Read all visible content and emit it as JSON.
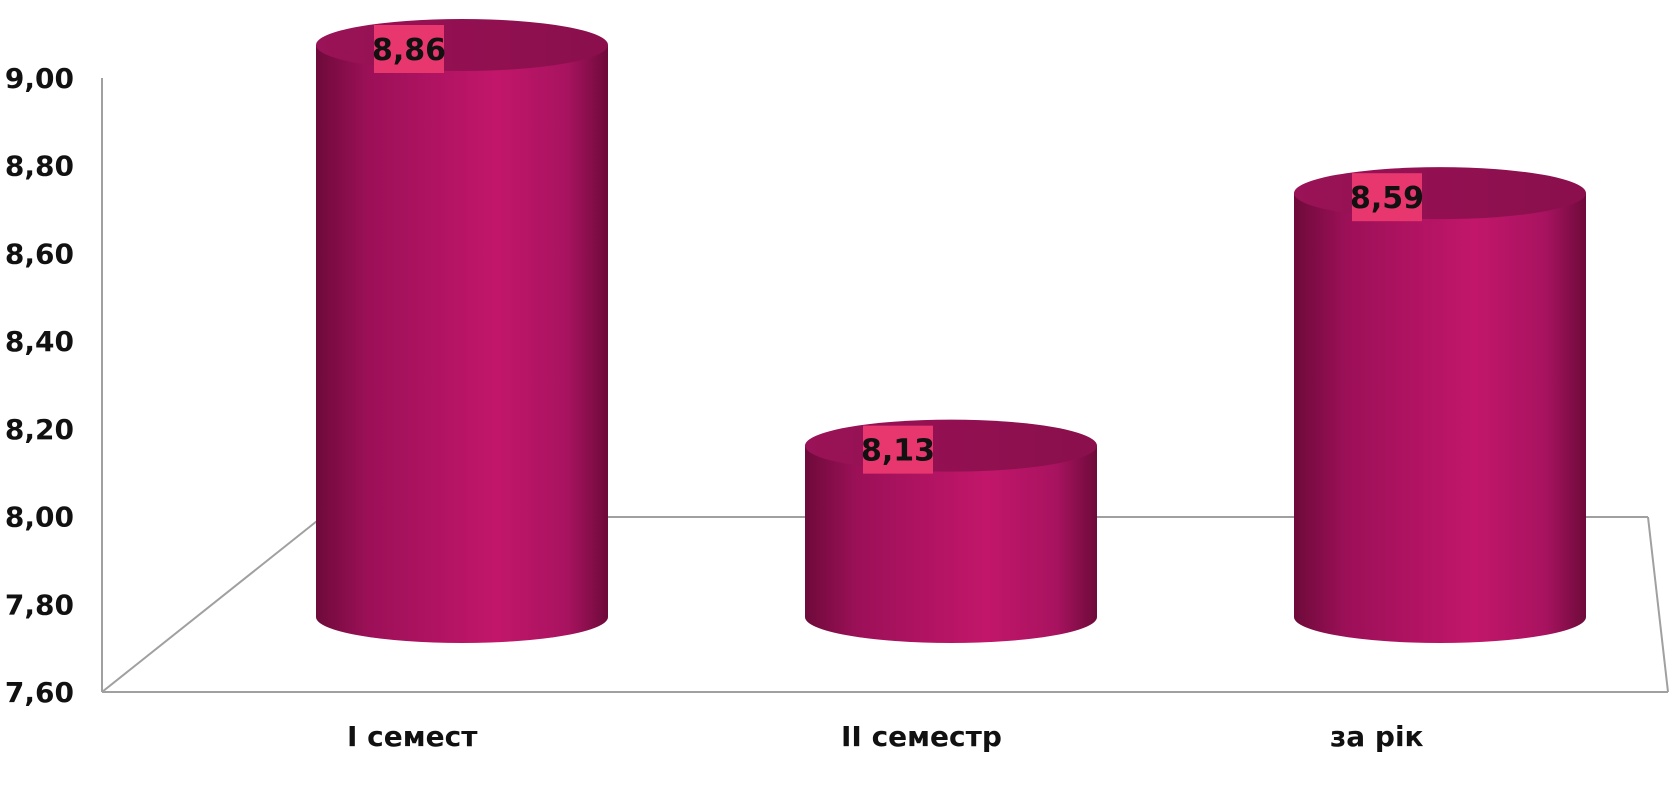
{
  "chart_data": {
    "type": "bar",
    "style": "3d-cylinder",
    "categories": [
      "I семест",
      "II семестр",
      "за рік"
    ],
    "values": [
      8.86,
      8.13,
      8.59
    ],
    "data_labels": [
      "8,86",
      "8,13",
      "8,59"
    ],
    "ylim": [
      7.6,
      9.0
    ],
    "yticks": [
      7.6,
      7.8,
      8.0,
      8.2,
      8.4,
      8.6,
      8.8,
      9.0
    ],
    "ytick_labels": [
      "7,60",
      "7,80",
      "8,00",
      "8,20",
      "8,40",
      "8,60",
      "8,80",
      "9,00"
    ],
    "grid": false,
    "legend": "none",
    "colors": {
      "bar_main": "#c2166a",
      "bar_dark": "#6e0a3a",
      "bar_top": "#8a0f4c",
      "label_bg": "#e8366f",
      "axis": "#a0a0a0",
      "text": "#111111"
    }
  }
}
